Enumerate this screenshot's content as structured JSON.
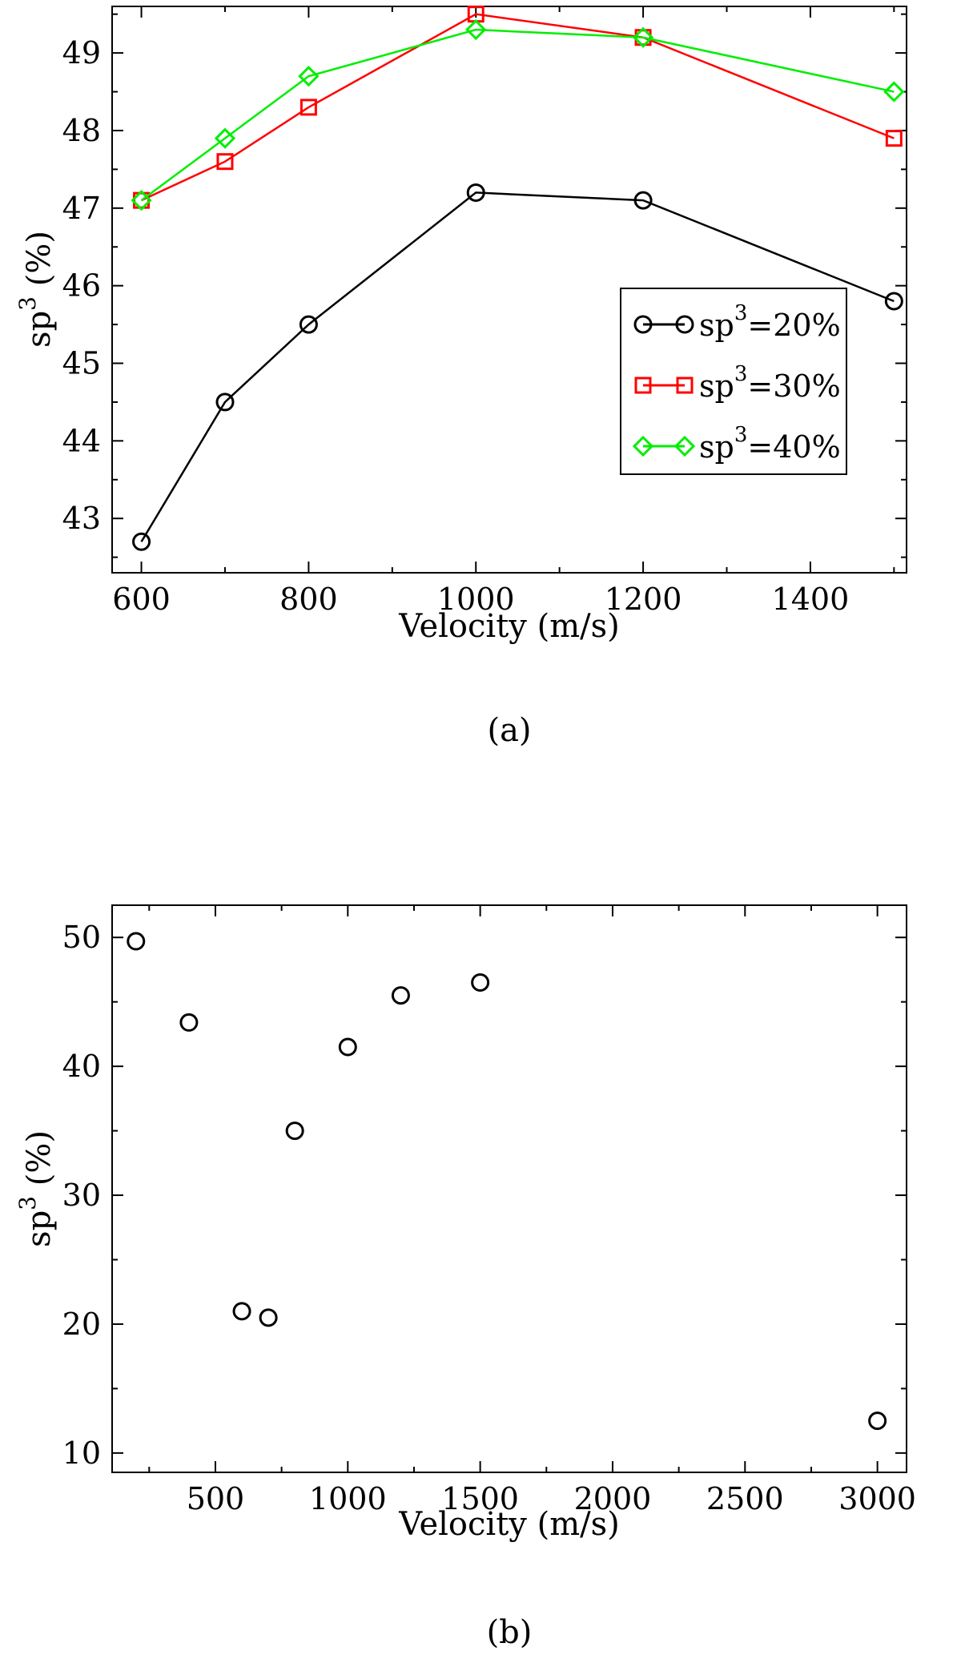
{
  "chart_data": [
    {
      "type": "line",
      "caption": "(a)",
      "xlabel": "Velocity (m/s)",
      "ylabel": "sp",
      "ylabel_sup": "3",
      "ylabel_tail": " (%)",
      "xlim": [
        565,
        1515
      ],
      "ylim": [
        42.3,
        49.6
      ],
      "xticks": [
        600,
        800,
        1000,
        1200,
        1400
      ],
      "yticks": [
        43,
        44,
        45,
        46,
        47,
        48,
        49
      ],
      "legend_position": "center-right",
      "series": [
        {
          "name_base": "sp",
          "name_sup": "3",
          "name_tail": "=20%",
          "color": "#000000",
          "marker": "circle",
          "x": [
            600,
            700,
            800,
            1000,
            1200,
            1500
          ],
          "y": [
            42.7,
            44.5,
            45.5,
            47.2,
            47.1,
            45.8
          ]
        },
        {
          "name_base": "sp",
          "name_sup": "3",
          "name_tail": "=30%",
          "color": "#ff0000",
          "marker": "square",
          "x": [
            600,
            700,
            800,
            1000,
            1200,
            1500
          ],
          "y": [
            47.1,
            47.6,
            48.3,
            49.5,
            49.2,
            47.9
          ]
        },
        {
          "name_base": "sp",
          "name_sup": "3",
          "name_tail": "=40%",
          "color": "#00ee00",
          "marker": "diamond",
          "x": [
            600,
            700,
            800,
            1000,
            1200,
            1500
          ],
          "y": [
            47.1,
            47.9,
            48.7,
            49.3,
            49.2,
            48.5
          ]
        }
      ]
    },
    {
      "type": "scatter",
      "caption": "(b)",
      "xlabel": "Velocity (m/s)",
      "ylabel": "sp",
      "ylabel_sup": "3",
      "ylabel_tail": " (%)",
      "xlim": [
        110,
        3110
      ],
      "ylim": [
        8.5,
        52.5
      ],
      "xticks": [
        500,
        1000,
        1500,
        2000,
        2500,
        3000
      ],
      "yticks": [
        10,
        20,
        30,
        40,
        50
      ],
      "series": [
        {
          "color": "#000000",
          "marker": "circle",
          "x": [
            200,
            400,
            600,
            700,
            800,
            1000,
            1200,
            1500,
            3000
          ],
          "y": [
            49.7,
            43.4,
            21.0,
            20.5,
            35.0,
            41.5,
            45.5,
            46.5,
            12.5
          ]
        }
      ]
    }
  ]
}
